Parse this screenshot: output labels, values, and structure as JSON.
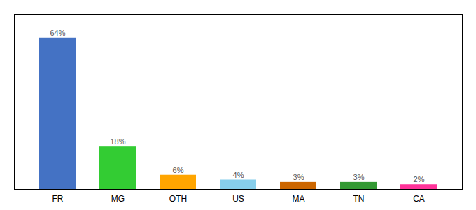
{
  "chart_data": {
    "type": "bar",
    "categories": [
      "FR",
      "MG",
      "OTH",
      "US",
      "MA",
      "TN",
      "CA"
    ],
    "values": [
      64,
      18,
      6,
      4,
      3,
      3,
      2
    ],
    "value_labels": [
      "64%",
      "18%",
      "6%",
      "4%",
      "3%",
      "3%",
      "2%"
    ],
    "colors": [
      "#4472C4",
      "#33CC33",
      "#FFA500",
      "#87CEEB",
      "#CC6600",
      "#339933",
      "#FF3399"
    ],
    "ylim": [
      0,
      74
    ],
    "data_labels": true,
    "tick_labels": "x"
  }
}
